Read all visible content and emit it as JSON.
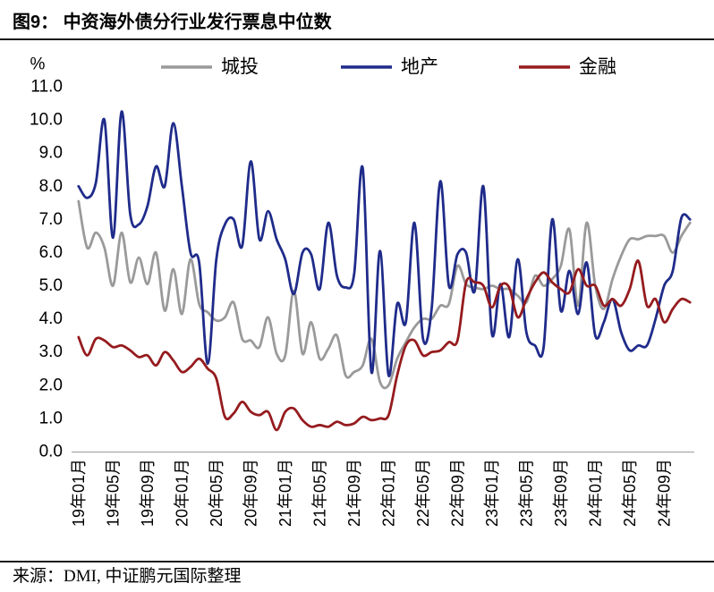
{
  "source": "来源：DMI, 中证鹏元国际整理",
  "chart_data": {
    "type": "line",
    "title": "图9： 中资海外债分行业发行票息中位数",
    "ylabel": "%",
    "ylim": [
      0,
      11
    ],
    "y_tick_labels": [
      "0.0",
      "1.0",
      "2.0",
      "3.0",
      "4.0",
      "5.0",
      "6.0",
      "7.0",
      "8.0",
      "9.0",
      "10.0",
      "11.0"
    ],
    "x_tick_labels": [
      "19年01月",
      "19年05月",
      "19年09月",
      "20年01月",
      "20年05月",
      "20年09月",
      "21年01月",
      "21年05月",
      "21年09月",
      "22年01月",
      "22年05月",
      "22年09月",
      "23年01月",
      "23年05月",
      "23年09月",
      "24年01月",
      "24年05月",
      "24年09月"
    ],
    "smooth": true,
    "grid": false,
    "legend": "top",
    "series": [
      {
        "name": "城投",
        "color": "#9a9a9a",
        "values": [
          7.55,
          6.15,
          6.6,
          6.15,
          5.0,
          6.6,
          5.1,
          5.85,
          5.05,
          6.0,
          4.25,
          5.5,
          4.15,
          5.8,
          4.45,
          4.2,
          3.95,
          4.05,
          4.5,
          3.4,
          3.35,
          3.15,
          4.05,
          2.95,
          2.9,
          4.85,
          2.95,
          3.9,
          2.8,
          3.1,
          3.5,
          2.3,
          2.4,
          2.6,
          3.4,
          2.1,
          2.0,
          2.8,
          3.3,
          3.75,
          4.0,
          4.0,
          4.4,
          4.45,
          5.6,
          5.05,
          4.95,
          4.9,
          5.0,
          4.9,
          4.9,
          4.7,
          4.5,
          5.3,
          5.0,
          5.2,
          5.6,
          6.7,
          4.4,
          6.9,
          5.0,
          4.3,
          5.2,
          5.9,
          6.4,
          6.4,
          6.5,
          6.5,
          6.5,
          6.0,
          6.5,
          6.9
        ]
      },
      {
        "name": "地产",
        "color": "#1f2b8a",
        "values": [
          8.0,
          7.65,
          8.1,
          10.0,
          6.45,
          10.25,
          7.15,
          6.85,
          7.4,
          8.6,
          8.0,
          9.9,
          8.0,
          6.0,
          5.7,
          2.65,
          5.8,
          6.85,
          7.0,
          6.2,
          8.75,
          6.4,
          7.25,
          6.4,
          5.8,
          4.75,
          6.0,
          5.95,
          4.9,
          6.9,
          5.3,
          4.95,
          5.35,
          8.55,
          2.4,
          6.05,
          2.3,
          4.45,
          3.9,
          6.9,
          3.4,
          4.3,
          8.15,
          5.0,
          5.95,
          6.0,
          4.85,
          8.0,
          3.55,
          5.05,
          3.45,
          5.8,
          3.6,
          3.2,
          3.15,
          7.0,
          4.25,
          5.45,
          4.15,
          5.7,
          3.5,
          3.9,
          4.6,
          3.6,
          3.05,
          3.2,
          3.2,
          4.0,
          5.0,
          5.45,
          7.05,
          7.0
        ]
      },
      {
        "name": "金融",
        "color": "#951b1e",
        "values": [
          3.45,
          2.9,
          3.4,
          3.35,
          3.15,
          3.2,
          3.05,
          2.85,
          2.9,
          2.6,
          3.0,
          2.75,
          2.4,
          2.55,
          2.8,
          2.5,
          2.2,
          1.05,
          1.15,
          1.5,
          1.2,
          1.1,
          1.2,
          0.65,
          1.2,
          1.3,
          0.95,
          0.75,
          0.8,
          0.75,
          0.9,
          0.8,
          0.85,
          1.05,
          0.95,
          1.0,
          1.1,
          2.3,
          3.2,
          3.35,
          2.9,
          3.0,
          3.05,
          3.3,
          3.35,
          5.1,
          5.1,
          5.0,
          4.35,
          5.0,
          4.95,
          4.05,
          4.6,
          5.1,
          5.4,
          5.1,
          4.9,
          4.8,
          5.5,
          5.0,
          5.0,
          4.4,
          4.6,
          4.4,
          4.9,
          5.75,
          4.4,
          4.6,
          3.9,
          4.3,
          4.6,
          4.5
        ]
      }
    ]
  }
}
